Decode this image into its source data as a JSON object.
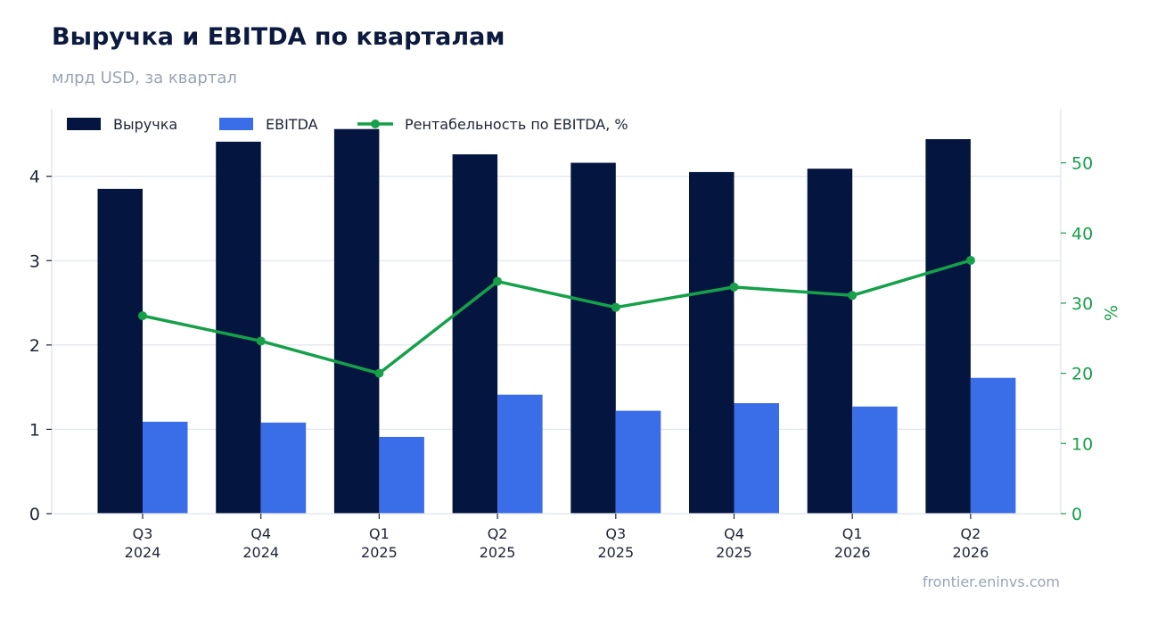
{
  "header": {
    "title": "Выручка и EBITDA по кварталам",
    "subtitle": "млрд USD, за квартал"
  },
  "footer": {
    "source": "frontier.eninvs.com"
  },
  "colors": {
    "revenue": "#041540",
    "ebitda": "#3a6de8",
    "margin": "#16a04a",
    "grid": "#e3e7ee"
  },
  "chart_data": {
    "type": "bar",
    "title": "Выручка и EBITDA по кварталам",
    "subtitle": "млрд USD, за квартал",
    "categories": [
      [
        "Q3",
        "2024"
      ],
      [
        "Q4",
        "2024"
      ],
      [
        "Q1",
        "2025"
      ],
      [
        "Q2",
        "2025"
      ],
      [
        "Q3",
        "2025"
      ],
      [
        "Q4",
        "2025"
      ],
      [
        "Q1",
        "2026"
      ],
      [
        "Q2",
        "2026"
      ]
    ],
    "series": [
      {
        "name": "Выручка",
        "kind": "bar",
        "axis": "left",
        "values": [
          3.85,
          4.41,
          4.56,
          4.26,
          4.16,
          4.05,
          4.09,
          4.44
        ]
      },
      {
        "name": "EBITDA",
        "kind": "bar",
        "axis": "left",
        "values": [
          1.09,
          1.08,
          0.91,
          1.41,
          1.22,
          1.31,
          1.27,
          1.61
        ]
      },
      {
        "name": "Рентабельность по EBITDA, %",
        "kind": "line",
        "axis": "right",
        "values": [
          28.2,
          24.6,
          20.0,
          33.1,
          29.4,
          32.3,
          31.1,
          36.1
        ]
      }
    ],
    "y_left": {
      "ticks": [
        0,
        1,
        2,
        3,
        4
      ],
      "ylim": [
        0,
        4.8
      ]
    },
    "y_right": {
      "label": "%",
      "ticks": [
        0,
        10,
        20,
        30,
        40,
        50
      ],
      "ylim": [
        0,
        57.7
      ]
    },
    "grid": true,
    "legend": "top-left"
  }
}
